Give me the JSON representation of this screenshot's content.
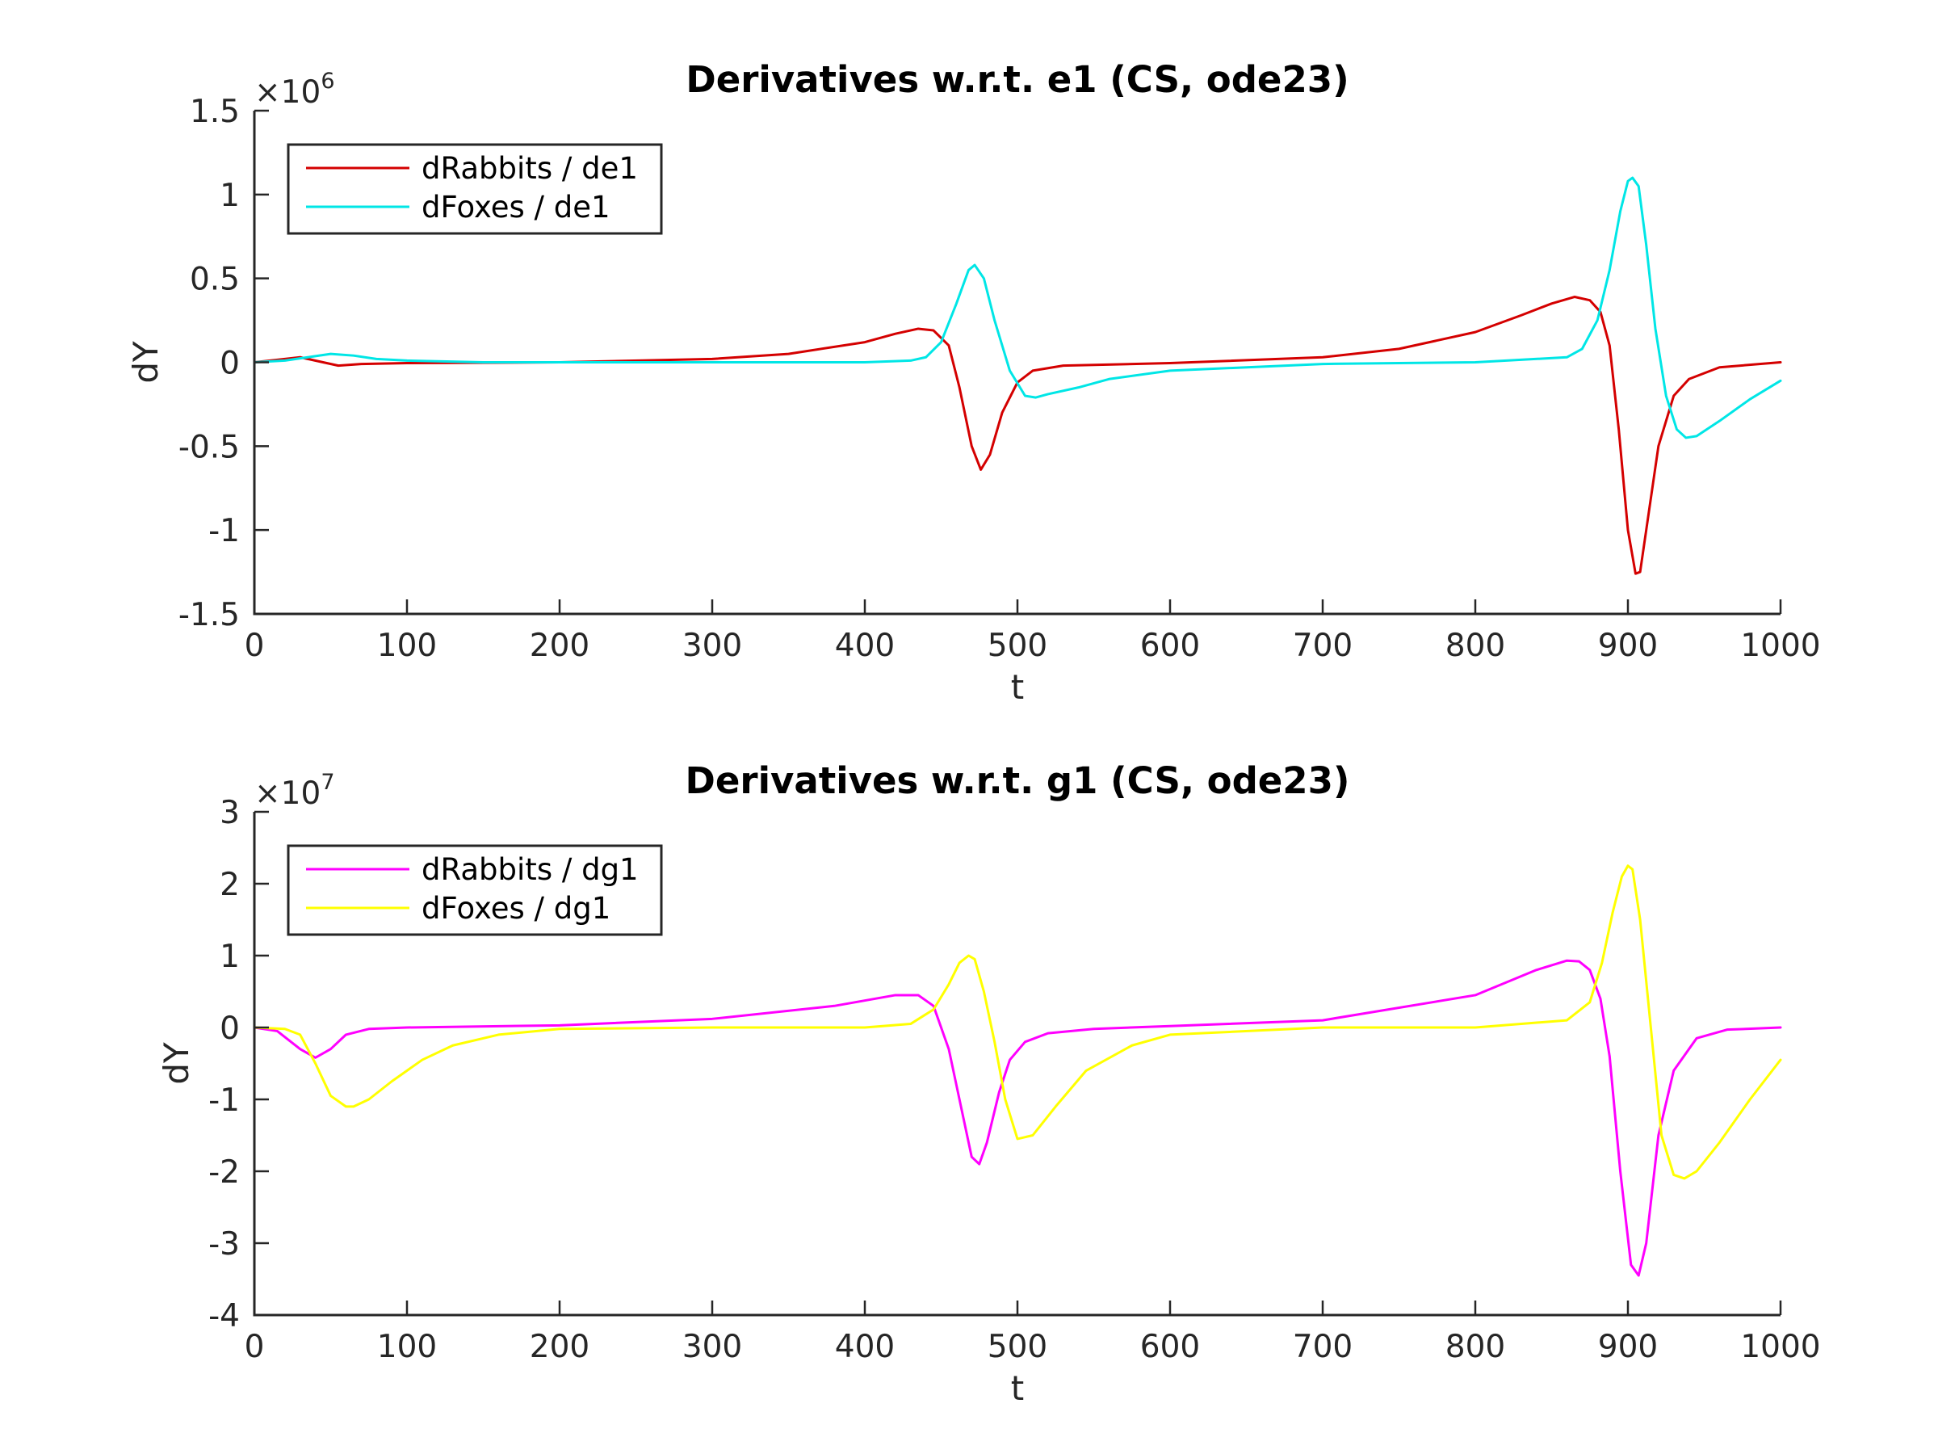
{
  "chart_data": [
    {
      "type": "line",
      "title": "Derivatives w.r.t. e1 (CS, ode23)",
      "xlabel": "t",
      "ylabel": "dY",
      "xlim": [
        0,
        1000
      ],
      "ylim": [
        -1.5,
        1.5
      ],
      "y_scale_exponent": "6",
      "xticks": [
        "0",
        "100",
        "200",
        "300",
        "400",
        "500",
        "600",
        "700",
        "800",
        "900",
        "1000"
      ],
      "yticks": [
        "-1.5",
        "-1",
        "-0.5",
        "0",
        "0.5",
        "1",
        "1.5"
      ],
      "ytick_values": [
        -1.5,
        -1,
        -0.5,
        0,
        0.5,
        1,
        1.5
      ],
      "legend_position": "top-left",
      "grid": false,
      "series": [
        {
          "name": "dRabbits / de1",
          "color": "#d40000",
          "x": [
            0,
            20,
            30,
            45,
            55,
            70,
            100,
            200,
            300,
            350,
            400,
            420,
            435,
            445,
            455,
            462,
            470,
            476,
            482,
            490,
            500,
            510,
            530,
            600,
            700,
            750,
            800,
            830,
            850,
            865,
            875,
            882,
            888,
            894,
            900,
            905,
            908,
            912,
            920,
            930,
            940,
            960,
            1000
          ],
          "y": [
            0,
            0.02,
            0.03,
            0,
            -0.02,
            -0.01,
            -0.005,
            0,
            0.02,
            0.05,
            0.12,
            0.17,
            0.2,
            0.19,
            0.1,
            -0.15,
            -0.5,
            -0.64,
            -0.55,
            -0.3,
            -0.12,
            -0.05,
            -0.02,
            -0.005,
            0.03,
            0.08,
            0.18,
            0.28,
            0.35,
            0.39,
            0.37,
            0.3,
            0.1,
            -0.4,
            -1.0,
            -1.26,
            -1.25,
            -1.0,
            -0.5,
            -0.2,
            -0.1,
            -0.03,
            0
          ]
        },
        {
          "name": "dFoxes / de1",
          "color": "#00e6e6",
          "x": [
            0,
            20,
            35,
            50,
            65,
            80,
            100,
            150,
            200,
            300,
            400,
            430,
            440,
            450,
            460,
            468,
            472,
            478,
            485,
            495,
            505,
            512,
            520,
            540,
            560,
            600,
            700,
            800,
            860,
            870,
            880,
            888,
            895,
            900,
            903,
            907,
            912,
            918,
            925,
            932,
            938,
            945,
            960,
            980,
            1000
          ],
          "y": [
            0,
            0.01,
            0.03,
            0.05,
            0.04,
            0.02,
            0.01,
            0,
            0,
            0,
            0,
            0.01,
            0.03,
            0.12,
            0.35,
            0.55,
            0.58,
            0.5,
            0.25,
            -0.05,
            -0.2,
            -0.21,
            -0.19,
            -0.15,
            -0.1,
            -0.05,
            -0.01,
            0,
            0.03,
            0.08,
            0.25,
            0.55,
            0.9,
            1.08,
            1.1,
            1.05,
            0.7,
            0.2,
            -0.2,
            -0.4,
            -0.45,
            -0.44,
            -0.35,
            -0.22,
            -0.11
          ]
        }
      ]
    },
    {
      "type": "line",
      "title": "Derivatives w.r.t. g1 (CS, ode23)",
      "xlabel": "t",
      "ylabel": "dY",
      "xlim": [
        0,
        1000
      ],
      "ylim": [
        -4,
        3
      ],
      "y_scale_exponent": "7",
      "xticks": [
        "0",
        "100",
        "200",
        "300",
        "400",
        "500",
        "600",
        "700",
        "800",
        "900",
        "1000"
      ],
      "yticks": [
        "-4",
        "-3",
        "-2",
        "-1",
        "0",
        "1",
        "2",
        "3"
      ],
      "ytick_values": [
        -4,
        -3,
        -2,
        -1,
        0,
        1,
        2,
        3
      ],
      "legend_position": "top-left",
      "grid": false,
      "series": [
        {
          "name": "dRabbits / dg1",
          "color": "#ff00ff",
          "x": [
            0,
            15,
            30,
            40,
            50,
            60,
            75,
            100,
            200,
            300,
            380,
            420,
            435,
            445,
            455,
            462,
            470,
            475,
            480,
            488,
            495,
            505,
            520,
            550,
            600,
            700,
            800,
            840,
            860,
            868,
            875,
            882,
            888,
            895,
            902,
            907,
            912,
            920,
            930,
            945,
            965,
            1000
          ],
          "y": [
            0,
            -0.05,
            -0.3,
            -0.42,
            -0.3,
            -0.1,
            -0.02,
            0,
            0.03,
            0.12,
            0.3,
            0.45,
            0.45,
            0.3,
            -0.3,
            -1.0,
            -1.8,
            -1.9,
            -1.6,
            -0.9,
            -0.45,
            -0.2,
            -0.08,
            -0.02,
            0.02,
            0.1,
            0.45,
            0.8,
            0.93,
            0.92,
            0.8,
            0.4,
            -0.4,
            -2.0,
            -3.3,
            -3.45,
            -3.0,
            -1.5,
            -0.6,
            -0.15,
            -0.03,
            0
          ]
        },
        {
          "name": "dFoxes / dg1",
          "color": "#ffff00",
          "x": [
            0,
            20,
            30,
            40,
            50,
            60,
            65,
            75,
            90,
            110,
            130,
            160,
            200,
            300,
            400,
            430,
            445,
            455,
            462,
            468,
            472,
            478,
            485,
            492,
            500,
            510,
            525,
            545,
            575,
            600,
            700,
            800,
            860,
            875,
            883,
            890,
            896,
            900,
            903,
            908,
            915,
            922,
            930,
            937,
            945,
            960,
            980,
            1000
          ],
          "y": [
            0,
            -0.02,
            -0.1,
            -0.5,
            -0.95,
            -1.1,
            -1.1,
            -1.0,
            -0.75,
            -0.45,
            -0.25,
            -0.1,
            -0.02,
            0,
            0,
            0.05,
            0.25,
            0.6,
            0.9,
            1.0,
            0.95,
            0.5,
            -0.2,
            -1.0,
            -1.55,
            -1.5,
            -1.1,
            -0.6,
            -0.25,
            -0.1,
            0,
            0,
            0.1,
            0.35,
            0.9,
            1.6,
            2.1,
            2.25,
            2.2,
            1.5,
            0,
            -1.5,
            -2.05,
            -2.1,
            -2.0,
            -1.6,
            -1.0,
            -0.45
          ]
        }
      ]
    }
  ]
}
